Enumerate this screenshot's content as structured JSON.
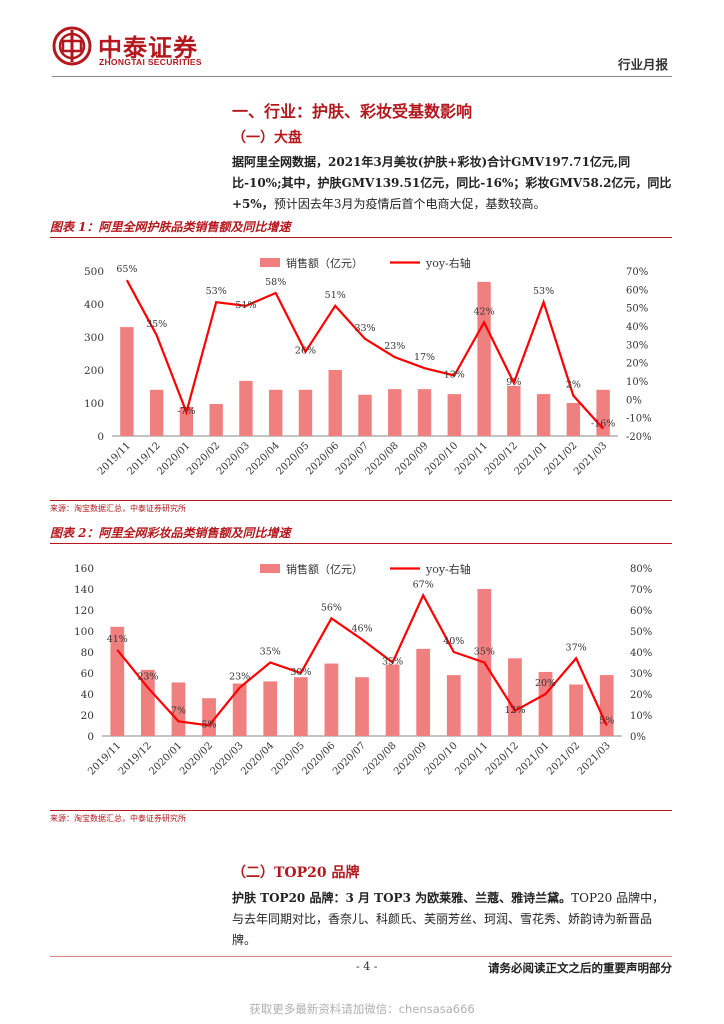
{
  "header": {
    "logo_cn": "中泰证券",
    "logo_en": "ZHONGTAI SECURITIES",
    "report_type": "行业月报"
  },
  "section": {
    "title": "一、行业：护肤、彩妆受基数影响",
    "subtitle1": "（一）大盘",
    "para1": {
      "bold": "据阿里全网数据，2021年3月美妆(护肤+彩妆)合计GMV197.71亿元,同比-10%;其中，护肤GMV139.51亿元，同比-16%；彩妆GMV58.2亿元，同比+5%，",
      "normal": "预计因去年3月为疫情后首个电商大促，基数较高。"
    },
    "subtitle2": "（二）TOP20 品牌",
    "para2": {
      "bold": "护肤 TOP20 品牌：3 月 TOP3 为欧莱雅、兰蔻、雅诗兰黛。",
      "normal": "TOP20 品牌中，与去年同期对比，香奈儿、科颜氏、芙丽芳丝、珂润、雪花秀、娇韵诗为新晋品牌。"
    }
  },
  "figure1": {
    "title": "图表 1：阿里全网护肤品类销售额及同比增速",
    "source": "来源：淘宝数据汇总，中泰证券研究所"
  },
  "figure2": {
    "title": "图表 2：阿里全网彩妆品类销售额及同比增速",
    "source": "来源：淘宝数据汇总，中泰证券研究所"
  },
  "chart_data": [
    {
      "type": "bar+line",
      "title": "阿里全网护肤品类销售额及同比增速",
      "categories": [
        "2019/11",
        "2019/12",
        "2020/01",
        "2020/02",
        "2020/03",
        "2020/04",
        "2020/05",
        "2020/06",
        "2020/07",
        "2020/08",
        "2020/09",
        "2020/10",
        "2020/11",
        "2020/12",
        "2021/01",
        "2021/02",
        "2021/03"
      ],
      "series": [
        {
          "name": "销售额（亿元）",
          "kind": "bar",
          "axis": "left",
          "color": "#f08080",
          "values": [
            330,
            140,
            88,
            97,
            167,
            140,
            140,
            200,
            125,
            142,
            142,
            127,
            467,
            152,
            127,
            100,
            140
          ]
        },
        {
          "name": "yoy-右轴",
          "kind": "line",
          "axis": "right",
          "color": "#ff0000",
          "values": [
            65,
            35,
            -7,
            53,
            51,
            58,
            26,
            51,
            33,
            23,
            17,
            13,
            42,
            9,
            53,
            2,
            -16
          ],
          "labels": [
            "65%",
            "35%",
            "-7%",
            "53%",
            "51%",
            "58%",
            "26%",
            "51%",
            "33%",
            "23%",
            "17%",
            "13%",
            "42%",
            "9%",
            "53%",
            "2%",
            "-16%"
          ]
        }
      ],
      "y_left": {
        "min": 0,
        "max": 500,
        "ticks": [
          "0",
          "100",
          "200",
          "300",
          "400",
          "500"
        ]
      },
      "y_right": {
        "min": -20,
        "max": 70,
        "ticks": [
          "-20%",
          "-10%",
          "0%",
          "10%",
          "20%",
          "30%",
          "40%",
          "50%",
          "60%",
          "70%"
        ]
      },
      "legend": [
        "销售额（亿元）",
        "yoy-右轴"
      ]
    },
    {
      "type": "bar+line",
      "title": "阿里全网彩妆品类销售额及同比增速",
      "categories": [
        "2019/11",
        "2019/12",
        "2020/01",
        "2020/02",
        "2020/03",
        "2020/04",
        "2020/05",
        "2020/06",
        "2020/07",
        "2020/08",
        "2020/09",
        "2020/10",
        "2020/11",
        "2020/12",
        "2021/01",
        "2021/02",
        "2021/03"
      ],
      "series": [
        {
          "name": "销售额（亿元）",
          "kind": "bar",
          "axis": "left",
          "color": "#f08080",
          "values": [
            104,
            63,
            51,
            36,
            50,
            52,
            56,
            69,
            56,
            68,
            83,
            58,
            140,
            74,
            61,
            49,
            58
          ]
        },
        {
          "name": "yoy-右轴",
          "kind": "line",
          "axis": "right",
          "color": "#ff0000",
          "values": [
            41,
            23,
            7,
            5,
            23,
            35,
            30,
            56,
            46,
            35,
            67,
            40,
            35,
            12,
            20,
            37,
            5
          ],
          "labels": [
            "41%",
            "23%",
            "7%",
            "5%",
            "23%",
            "35%",
            "30%",
            "56%",
            "46%",
            "35%",
            "67%",
            "40%",
            "35%",
            "12%",
            "20%",
            "37%",
            "5%"
          ]
        }
      ],
      "y_left": {
        "min": 0,
        "max": 160,
        "ticks": [
          "0",
          "20",
          "40",
          "60",
          "80",
          "100",
          "120",
          "140",
          "160"
        ]
      },
      "y_right": {
        "min": 0,
        "max": 80,
        "ticks": [
          "0%",
          "10%",
          "20%",
          "30%",
          "40%",
          "50%",
          "60%",
          "70%",
          "80%"
        ]
      },
      "legend": [
        "销售额（亿元）",
        "yoy-右轴"
      ]
    }
  ],
  "footer": {
    "page": "- 4 -",
    "note": "请务必阅读正文之后的重要声明部分"
  },
  "watermark": "获取更多最新资料请加微信：chensasa666",
  "colors": {
    "brand": "#b4181e",
    "bar": "#f08080",
    "line": "#ff0000"
  }
}
